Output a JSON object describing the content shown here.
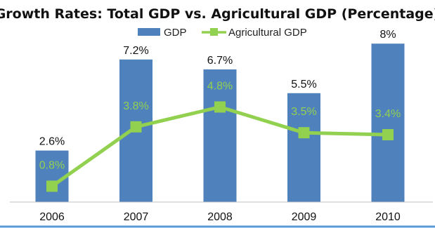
{
  "chart_data": {
    "type": "bar",
    "title": "Growth Rates: Total GDP vs. Agricultural GDP (Percentage)",
    "categories": [
      "2006",
      "2007",
      "2008",
      "2009",
      "2010"
    ],
    "series": [
      {
        "name": "GDP",
        "type": "bar",
        "color": "#4f81bd",
        "values": [
          2.6,
          7.2,
          6.7,
          5.5,
          8
        ],
        "labels": [
          "2.6%",
          "7.2%",
          "6.7%",
          "5.5%",
          "8%"
        ]
      },
      {
        "name": "Agricultural GDP",
        "type": "line",
        "color": "#92d050",
        "values": [
          0.8,
          3.8,
          4.8,
          3.5,
          3.4
        ],
        "labels": [
          "0.8%",
          "3.8%",
          "4.8%",
          "3.5%",
          "3.4%"
        ]
      }
    ],
    "ylim": [
      0,
      9
    ],
    "grid": false,
    "legend": "top",
    "xlabel": "",
    "ylabel": ""
  }
}
